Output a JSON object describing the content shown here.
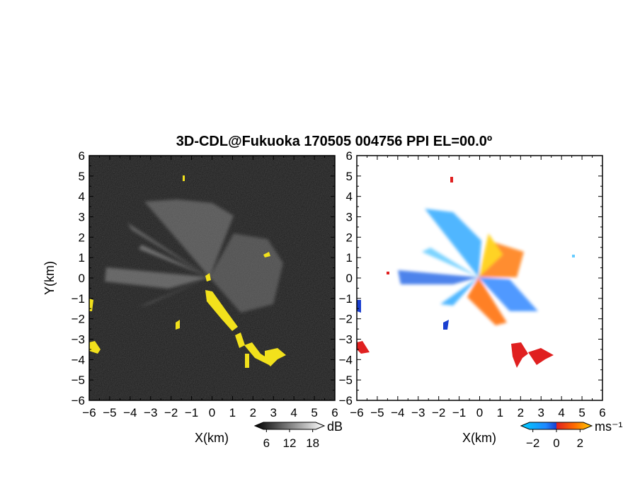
{
  "chart_data": {
    "title": "3D-CDL@Fukuoka 170505 004756 PPI EL=00.0º",
    "panels": [
      {
        "type": "heatmap",
        "variable": "reflectivity",
        "xlabel": "X(km)",
        "ylabel": "Y(km)",
        "xlim": [
          -6,
          6
        ],
        "ylim": [
          -6,
          6
        ],
        "xticks": [
          "−6",
          "−5",
          "−4",
          "−3",
          "−2",
          "−1",
          "0",
          "1",
          "2",
          "3",
          "4",
          "5",
          "6"
        ],
        "yticks": [
          "6",
          "5",
          "4",
          "3",
          "2",
          "1",
          "0",
          "−1",
          "−2",
          "−3",
          "−4",
          "−5",
          "−6"
        ],
        "colorbar": {
          "unit": "dB",
          "ticks": [
            "6",
            "12",
            "18"
          ],
          "range": [
            3,
            21
          ]
        },
        "background": "#1b1b1b",
        "highlight_color": "#f2e11c"
      },
      {
        "type": "heatmap",
        "variable": "doppler velocity",
        "xlabel": "X(km)",
        "xlim": [
          -6,
          6
        ],
        "ylim": [
          -6,
          6
        ],
        "xticks": [
          "−6",
          "−5",
          "−4",
          "−3",
          "−2",
          "−1",
          "0",
          "1",
          "2",
          "3",
          "4",
          "5",
          "6"
        ],
        "yticks": [
          "6",
          "5",
          "4",
          "3",
          "2",
          "1",
          "0",
          "−1",
          "−2",
          "−3",
          "−4",
          "−5",
          "−6"
        ],
        "colorbar": {
          "unit": "ms⁻¹",
          "ticks": [
            "−2",
            "0",
            "2"
          ],
          "range": [
            -3,
            3
          ]
        },
        "colors": [
          "#00cfff",
          "#1e88ff",
          "#1a3fd0",
          "#e02020",
          "#ff6a00",
          "#ffcc00"
        ]
      }
    ]
  }
}
